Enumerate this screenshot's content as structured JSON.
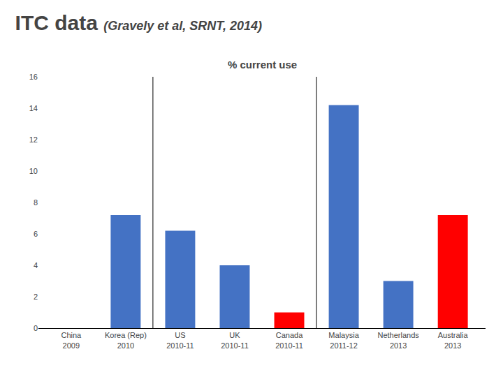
{
  "chart_data": {
    "type": "bar",
    "title": "ITC data",
    "subtitle": "(Gravely et al, SRNT, 2014)",
    "annotations": [
      "% current use"
    ],
    "categories": [
      "China",
      "Korea (Rep)",
      "US",
      "UK",
      "Canada",
      "Malaysia",
      "Netherlands",
      "Australia"
    ],
    "years": [
      "2009",
      "2010",
      "2010-11",
      "2010-11",
      "2010-11",
      "2011-12",
      "2013",
      "2013"
    ],
    "values": [
      0,
      7.2,
      6.2,
      4.0,
      1.0,
      14.2,
      3.0,
      7.2
    ],
    "colors": [
      "#4472C4",
      "#4472C4",
      "#4472C4",
      "#4472C4",
      "#FF0000",
      "#4472C4",
      "#4472C4",
      "#FF0000"
    ],
    "ylim": [
      0,
      16
    ],
    "yticks": [
      0,
      2,
      4,
      6,
      8,
      10,
      12,
      14,
      16
    ],
    "grid": false
  }
}
